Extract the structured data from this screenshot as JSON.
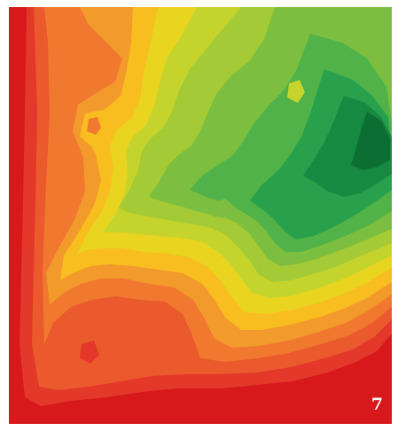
{
  "map": {
    "panel_label": "7",
    "style": "filled-contour elevation map",
    "color_ramp": [
      "#d7191c",
      "#e3382a",
      "#eb5a2d",
      "#f0792f",
      "#f29a2c",
      "#f8bd1f",
      "#e9d41f",
      "#c5d42d",
      "#a4ca35",
      "#7cbf40",
      "#50b248",
      "#28a04c",
      "#168a40",
      "#0d6e33"
    ]
  }
}
